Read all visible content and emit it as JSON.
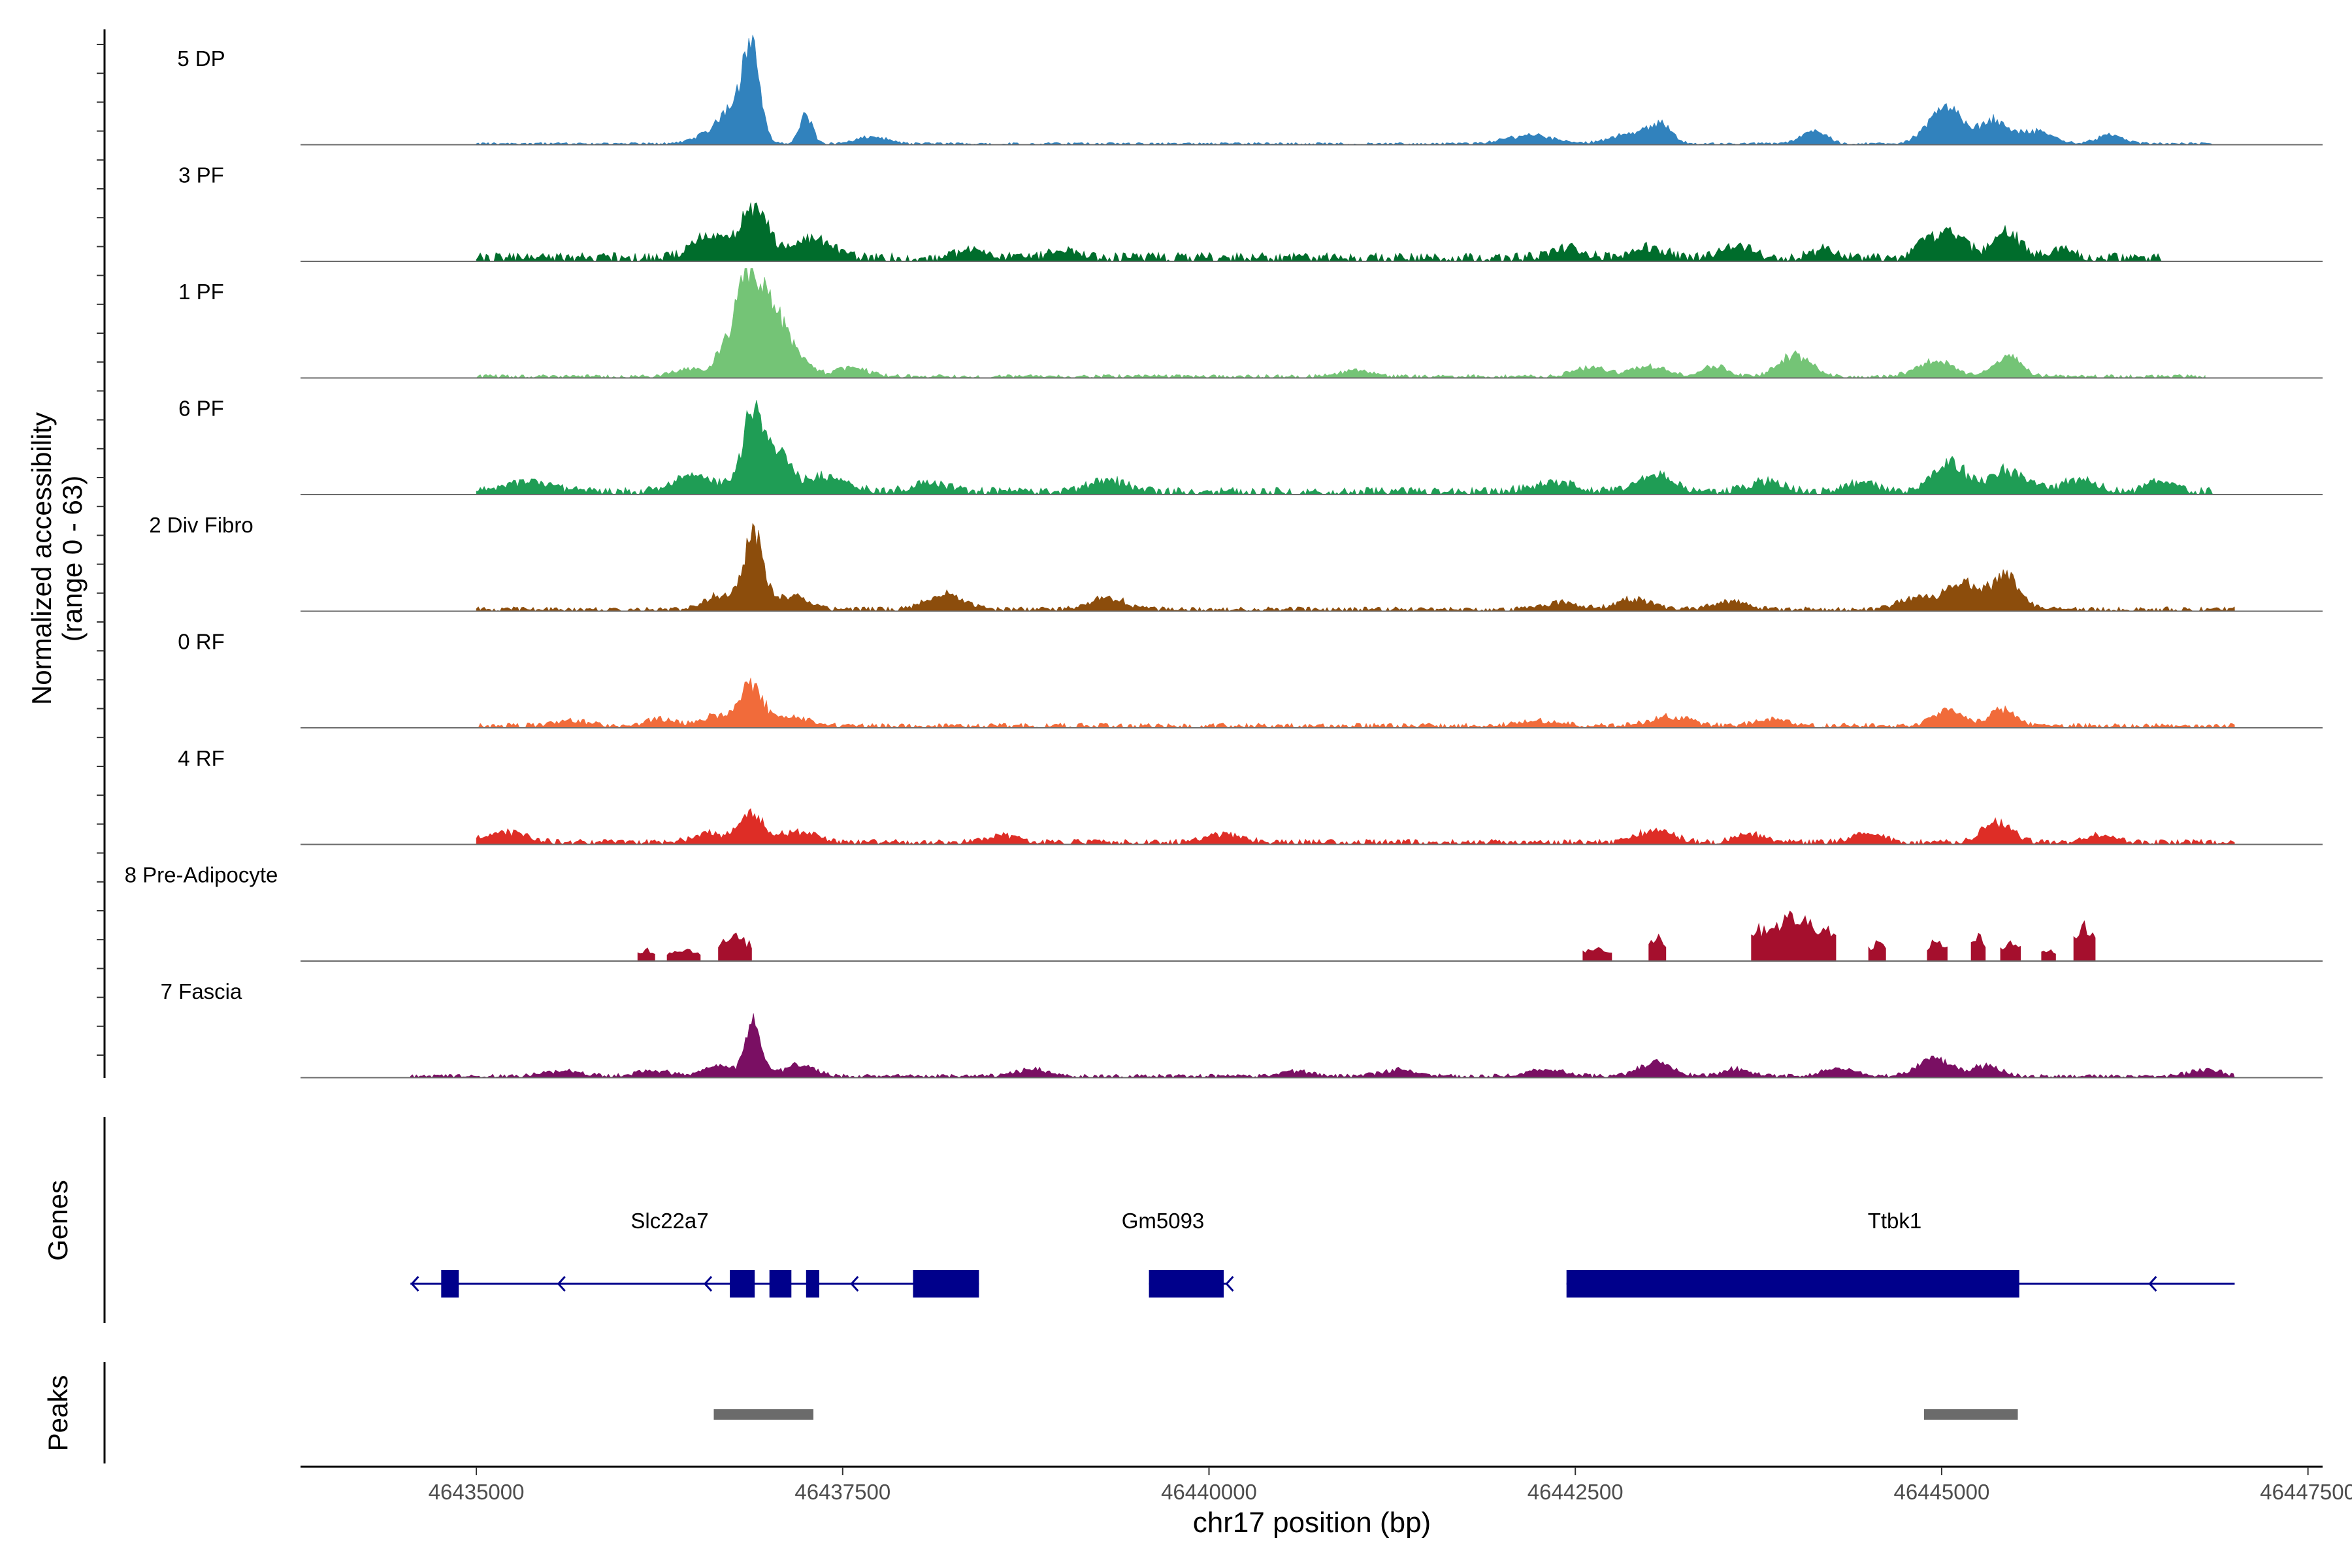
{
  "chart_data": {
    "type": "area",
    "chromosome": "chr17",
    "region": [
      46434550,
      46447050
    ],
    "xlabel": "chr17 position (bp)",
    "xlim": [
      46433800,
      46447600
    ],
    "x_ticks": [
      46435000,
      46437500,
      46440000,
      46442500,
      46445000,
      46447500
    ],
    "x_tick_labels": [
      "46435000",
      "46437500",
      "46440000",
      "46442500",
      "46445000",
      "46447500"
    ],
    "ylabel_line1": "Normalized accessibility",
    "ylabel_line2": "(range 0 - 63)",
    "y_range": [
      0,
      63
    ],
    "tracks": [
      {
        "name": "5 DP",
        "color": "#3182BD",
        "start": 46435000,
        "end": 46446850,
        "base": 0.8,
        "peaks": [
          [
            46436880,
            58,
            55
          ],
          [
            46436760,
            20,
            80
          ],
          [
            46437250,
            16,
            45
          ],
          [
            46436600,
            6,
            110
          ],
          [
            46437700,
            4,
            100
          ],
          [
            46443080,
            10,
            70
          ],
          [
            46442200,
            5,
            160
          ],
          [
            46442900,
            6,
            140
          ],
          [
            46444130,
            8,
            80
          ],
          [
            46444920,
            7,
            90
          ],
          [
            46445050,
            20,
            85
          ],
          [
            46445350,
            14,
            100
          ],
          [
            46445650,
            7,
            110
          ],
          [
            46446150,
            5,
            90
          ]
        ]
      },
      {
        "name": "3 PF",
        "color": "#006D2C",
        "start": 46435000,
        "end": 46446500,
        "base": 3,
        "peaks": [
          [
            46436900,
            30,
            90
          ],
          [
            46436600,
            12,
            120
          ],
          [
            46437300,
            12,
            120
          ],
          [
            46438400,
            5,
            100
          ],
          [
            46439000,
            4,
            90
          ],
          [
            46442450,
            5,
            110
          ],
          [
            46443000,
            6,
            110
          ],
          [
            46443600,
            7,
            100
          ],
          [
            46444200,
            5,
            80
          ],
          [
            46445050,
            15,
            110
          ],
          [
            46445450,
            15,
            90
          ],
          [
            46444860,
            6,
            60
          ],
          [
            46445820,
            5,
            80
          ]
        ]
      },
      {
        "name": "1 PF",
        "color": "#74C476",
        "start": 46435000,
        "end": 46446800,
        "base": 1.2,
        "peaks": [
          [
            46436830,
            55,
            65
          ],
          [
            46436980,
            40,
            80
          ],
          [
            46436680,
            14,
            55
          ],
          [
            46437150,
            18,
            90
          ],
          [
            46436450,
            4,
            110
          ],
          [
            46437550,
            5,
            120
          ],
          [
            46441000,
            4,
            100
          ],
          [
            46442600,
            5,
            110
          ],
          [
            46443000,
            6,
            120
          ],
          [
            46443450,
            6,
            90
          ],
          [
            46444000,
            12,
            110
          ],
          [
            46444950,
            9,
            120
          ],
          [
            46445450,
            12,
            90
          ]
        ]
      },
      {
        "name": "6 PF",
        "color": "#1F9D55",
        "start": 46435000,
        "end": 46446850,
        "base": 2.5,
        "peaks": [
          [
            46436880,
            40,
            70
          ],
          [
            46437050,
            22,
            90
          ],
          [
            46436500,
            9,
            140
          ],
          [
            46437400,
            9,
            140
          ],
          [
            46435350,
            6,
            150
          ],
          [
            46438100,
            5,
            120
          ],
          [
            46439300,
            7,
            120
          ],
          [
            46443050,
            10,
            110
          ],
          [
            46442350,
            5,
            150
          ],
          [
            46443800,
            6,
            120
          ],
          [
            46444450,
            5,
            110
          ],
          [
            46445050,
            16,
            110
          ],
          [
            46445450,
            12,
            130
          ],
          [
            46445950,
            7,
            110
          ],
          [
            46446500,
            6,
            90
          ]
        ]
      },
      {
        "name": "2 Div Fibro",
        "color": "#8C4D0C",
        "start": 46435000,
        "end": 46447000,
        "base": 1.5,
        "peaks": [
          [
            46436890,
            42,
            70
          ],
          [
            46436650,
            8,
            90
          ],
          [
            46437150,
            8,
            110
          ],
          [
            46438200,
            9,
            120
          ],
          [
            46439300,
            7,
            120
          ],
          [
            46442400,
            4,
            120
          ],
          [
            46442900,
            6,
            120
          ],
          [
            46443550,
            5,
            110
          ],
          [
            46445150,
            15,
            140
          ],
          [
            46445450,
            18,
            90
          ],
          [
            46444800,
            6,
            100
          ]
        ]
      },
      {
        "name": "0 RF",
        "color": "#F16B3A",
        "start": 46435000,
        "end": 46447000,
        "base": 1.6,
        "peaks": [
          [
            46436880,
            24,
            75
          ],
          [
            46436650,
            6,
            110
          ],
          [
            46437150,
            5,
            110
          ],
          [
            46435650,
            3,
            120
          ],
          [
            46436250,
            4,
            90
          ],
          [
            46442250,
            3,
            140
          ],
          [
            46443150,
            5,
            140
          ],
          [
            46443850,
            4,
            110
          ],
          [
            46445050,
            10,
            100
          ],
          [
            46445420,
            9,
            90
          ]
        ]
      },
      {
        "name": "4 RF",
        "color": "#DE2D26",
        "start": 46435000,
        "end": 46447000,
        "base": 1.8,
        "peaks": [
          [
            46436880,
            18,
            75
          ],
          [
            46436600,
            5,
            120
          ],
          [
            46437200,
            6,
            120
          ],
          [
            46435200,
            6,
            130
          ],
          [
            46438600,
            4,
            100
          ],
          [
            46440100,
            5,
            120
          ],
          [
            46443050,
            7,
            120
          ],
          [
            46443700,
            5,
            100
          ],
          [
            46444500,
            5,
            110
          ],
          [
            46445380,
            11,
            100
          ],
          [
            46446100,
            5,
            90
          ]
        ]
      },
      {
        "name": "8 Pre-Adipocyte",
        "color": "#A50F2D",
        "start": 46435000,
        "end": 46447000,
        "base": 0,
        "blocks": [
          [
            46436100,
            46436220,
            7
          ],
          [
            46436300,
            46436530,
            7
          ],
          [
            46436650,
            46436880,
            14
          ],
          [
            46442550,
            46442750,
            8
          ],
          [
            46443000,
            46443120,
            15
          ],
          [
            46443700,
            46444280,
            25
          ],
          [
            46444500,
            46444620,
            11
          ],
          [
            46444900,
            46445040,
            12
          ],
          [
            46445200,
            46445300,
            14
          ],
          [
            46445400,
            46445540,
            12
          ],
          [
            46445680,
            46445780,
            7
          ],
          [
            46445900,
            46446050,
            20
          ]
        ]
      },
      {
        "name": "7 Fascia",
        "color": "#7A0F63",
        "start": 46434550,
        "end": 46447000,
        "base": 1.2,
        "peaks": [
          [
            46436890,
            30,
            55
          ],
          [
            46436650,
            6,
            100
          ],
          [
            46437200,
            6,
            110
          ],
          [
            46435600,
            3,
            130
          ],
          [
            46436200,
            3,
            120
          ],
          [
            46438800,
            4,
            120
          ],
          [
            46440600,
            3,
            110
          ],
          [
            46441300,
            4,
            120
          ],
          [
            46443050,
            8,
            110
          ],
          [
            46442300,
            4,
            130
          ],
          [
            46443600,
            4,
            100
          ],
          [
            46444300,
            4,
            120
          ],
          [
            46444950,
            10,
            110
          ],
          [
            46445300,
            6,
            100
          ],
          [
            46446800,
            4,
            100
          ]
        ]
      }
    ],
    "genes": {
      "label": "Genes",
      "items": [
        {
          "name": "Slc22a7",
          "start": 46434550,
          "end": 46438430,
          "strand": "-",
          "exons": [
            [
              46434760,
              46434880
            ],
            [
              46436730,
              46436900
            ],
            [
              46437000,
              46437150
            ],
            [
              46437250,
              46437340
            ],
            [
              46437980,
              46438430
            ]
          ],
          "arrows": [
            46434560,
            46435560,
            46436560,
            46437560
          ]
        },
        {
          "name": "Gm5093",
          "start": 46439590,
          "end": 46440130,
          "strand": "-",
          "exons": [
            [
              46439590,
              46440100
            ]
          ],
          "arrows": [
            46440120
          ]
        },
        {
          "name": "Ttbk1",
          "start": 46442440,
          "end": 46447000,
          "strand": "-",
          "exons": [
            [
              46442440,
              46445530
            ]
          ],
          "arrows": [
            46446420
          ]
        }
      ]
    },
    "peaks_track": {
      "label": "Peaks",
      "regions": [
        [
          46436620,
          46437300
        ],
        [
          46444880,
          46445520
        ]
      ]
    }
  }
}
